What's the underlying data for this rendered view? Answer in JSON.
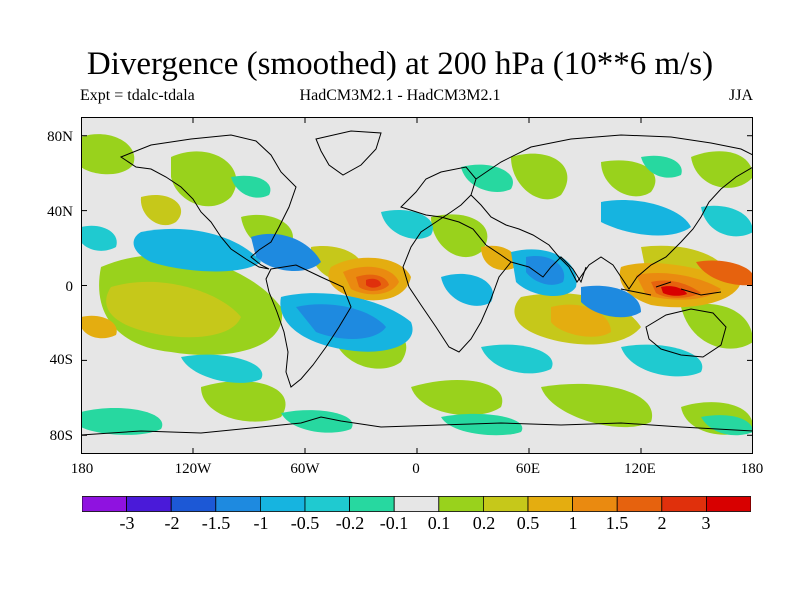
{
  "title": "Divergence (smoothed) at 200 hPa (10**6 m/s)",
  "experiment": "Expt = tdalc-tdala",
  "models": "HadCM3M2.1 - HadCM3M2.1",
  "season": "JJA",
  "map": {
    "lat_labels": [
      "80N",
      "40N",
      "0",
      "40S",
      "80S"
    ],
    "lon_labels": [
      "180",
      "120W",
      "60W",
      "0",
      "60E",
      "120E",
      "180"
    ],
    "lon_range": [
      -180,
      180
    ],
    "lat_range": [
      -90,
      90
    ]
  },
  "colorbar": {
    "labels": [
      "-3",
      "-2",
      "-1.5",
      "-1",
      "-0.5",
      "-0.2",
      "-0.1",
      "0.1",
      "0.2",
      "0.5",
      "1",
      "1.5",
      "2",
      "3"
    ],
    "colors": [
      "#8f12e0",
      "#4a1ad9",
      "#1c58d6",
      "#1e8ae0",
      "#16b4e0",
      "#1fcad0",
      "#27d8a0",
      "#e6e6e6",
      "#99d21c",
      "#c6c81a",
      "#e4ad10",
      "#ea8a10",
      "#e6620e",
      "#e0300c",
      "#d80000"
    ]
  },
  "icons": {
    "coastline": "world-coastline-icon"
  }
}
